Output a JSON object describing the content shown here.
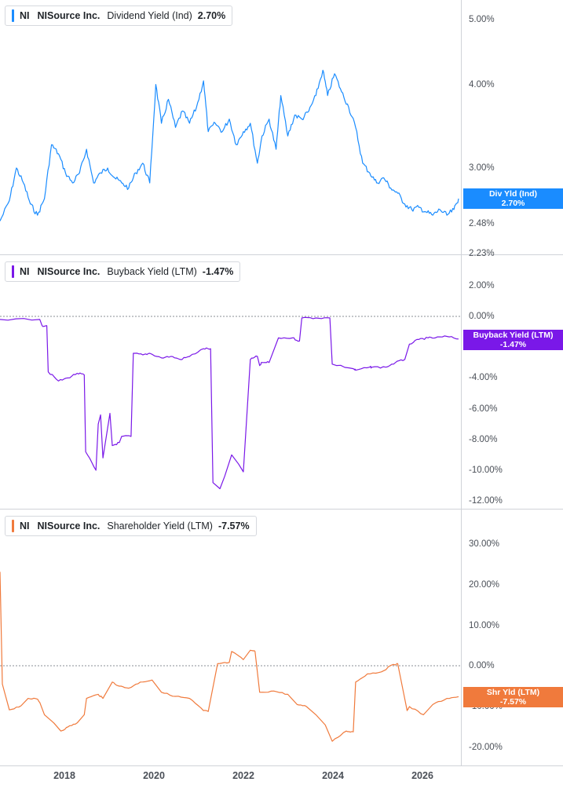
{
  "colors": {
    "dividend": "#1a8cff",
    "buyback": "#7a18e8",
    "shareholder": "#f07a3c",
    "grid": "#d0d3d8",
    "text": "#4a4f57"
  },
  "x_axis": {
    "ticks": [
      "2018",
      "2020",
      "2022",
      "2024",
      "2026"
    ]
  },
  "panes": [
    {
      "legend": {
        "ticker": "NI",
        "company": "NISource Inc.",
        "metric": "Dividend Yield (Ind)",
        "value": "2.70%"
      },
      "tag": {
        "label": "Div Yld (Ind)",
        "value": "2.70%"
      },
      "yticks": [
        "5.00%",
        "4.00%",
        "3.00%",
        "2.48%",
        "2.23%"
      ]
    },
    {
      "legend": {
        "ticker": "NI",
        "company": "NISource Inc.",
        "metric": "Buyback Yield (LTM)",
        "value": "-1.47%"
      },
      "tag": {
        "label": "Buyback Yield (LTM)",
        "value": "-1.47%"
      },
      "yticks": [
        "2.00%",
        "0.00%",
        "-2.00%",
        "-4.00%",
        "-6.00%",
        "-8.00%",
        "-10.00%",
        "-12.00%"
      ]
    },
    {
      "legend": {
        "ticker": "NI",
        "company": "NISource Inc.",
        "metric": "Shareholder Yield (LTM)",
        "value": "-7.57%"
      },
      "tag": {
        "label": "Shr Yld (LTM)",
        "value": "-7.57%"
      },
      "yticks": [
        "30.00%",
        "20.00%",
        "10.00%",
        "0.00%",
        "-10.00%",
        "-20.00%"
      ]
    }
  ],
  "chart_data": [
    {
      "type": "line",
      "scale": "log",
      "x_range": [
        2016.75,
        2026.6
      ],
      "ylim": [
        2.23,
        5.2
      ],
      "series": [
        {
          "name": "Dividend Yield (Ind)",
          "x": [
            2016.75,
            2016.95,
            2017.1,
            2017.25,
            2017.4,
            2017.55,
            2017.7,
            2017.85,
            2018.0,
            2018.15,
            2018.3,
            2018.45,
            2018.6,
            2018.75,
            2018.9,
            2019.05,
            2019.2,
            2019.35,
            2019.5,
            2019.65,
            2019.8,
            2019.95,
            2020.08,
            2020.2,
            2020.35,
            2020.5,
            2020.65,
            2020.8,
            2020.95,
            2021.1,
            2021.2,
            2021.35,
            2021.5,
            2021.65,
            2021.8,
            2021.95,
            2022.1,
            2022.25,
            2022.35,
            2022.5,
            2022.65,
            2022.75,
            2022.9,
            2023.05,
            2023.2,
            2023.35,
            2023.5,
            2023.65,
            2023.75,
            2023.9,
            2024.05,
            2024.2,
            2024.35,
            2024.5,
            2024.65,
            2024.8,
            2024.95,
            2025.1,
            2025.25,
            2025.4,
            2025.55,
            2025.7,
            2025.85,
            2026.0,
            2026.15,
            2026.3,
            2026.45,
            2026.55
          ],
          "values": [
            2.5,
            2.68,
            3.0,
            2.85,
            2.65,
            2.55,
            2.7,
            3.25,
            3.15,
            2.95,
            2.85,
            2.95,
            3.2,
            2.85,
            2.95,
            3.0,
            2.9,
            2.85,
            2.8,
            2.95,
            3.05,
            2.85,
            4.0,
            3.5,
            3.8,
            3.45,
            3.65,
            3.5,
            3.7,
            4.05,
            3.4,
            3.5,
            3.4,
            3.55,
            3.25,
            3.4,
            3.5,
            3.05,
            3.35,
            3.55,
            3.2,
            3.85,
            3.35,
            3.6,
            3.55,
            3.65,
            3.85,
            4.2,
            3.85,
            4.15,
            3.9,
            3.7,
            3.45,
            3.05,
            2.95,
            2.85,
            2.9,
            2.8,
            2.75,
            2.65,
            2.6,
            2.62,
            2.58,
            2.55,
            2.6,
            2.55,
            2.6,
            2.7
          ]
        }
      ]
    },
    {
      "type": "line",
      "x_range": [
        2016.75,
        2026.6
      ],
      "ylim": [
        -12.2,
        2.4
      ],
      "series": [
        {
          "name": "Buyback Yield (LTM)",
          "x": [
            2016.75,
            2017.6,
            2017.65,
            2017.75,
            2017.78,
            2018.0,
            2018.2,
            2018.4,
            2018.55,
            2018.58,
            2018.8,
            2018.85,
            2018.9,
            2018.95,
            2019.1,
            2019.15,
            2019.3,
            2019.35,
            2019.55,
            2019.6,
            2019.8,
            2019.95,
            2020.2,
            2020.4,
            2020.6,
            2020.8,
            2021.1,
            2021.25,
            2021.3,
            2021.45,
            2021.55,
            2021.7,
            2021.85,
            2021.95,
            2022.1,
            2022.25,
            2022.3,
            2022.35,
            2022.5,
            2022.7,
            2023.0,
            2023.15,
            2023.2,
            2023.5,
            2023.8,
            2023.85,
            2024.3,
            2024.35,
            2024.65,
            2024.7,
            2025.0,
            2025.2,
            2025.4,
            2025.5,
            2025.7,
            2025.9,
            2026.05,
            2026.3,
            2026.55
          ],
          "values": [
            -0.2,
            -0.2,
            -0.6,
            -0.6,
            -3.6,
            -4.2,
            -4.0,
            -3.7,
            -3.8,
            -8.8,
            -10.0,
            -7.0,
            -6.4,
            -9.2,
            -6.3,
            -8.4,
            -8.2,
            -7.8,
            -7.8,
            -2.4,
            -2.5,
            -2.4,
            -2.7,
            -2.6,
            -2.8,
            -2.6,
            -2.1,
            -2.1,
            -10.8,
            -11.2,
            -10.4,
            -9.0,
            -9.6,
            -10.1,
            -2.8,
            -2.6,
            -3.2,
            -3.0,
            -3.0,
            -1.4,
            -1.4,
            -1.6,
            -0.1,
            -0.1,
            -0.1,
            -3.1,
            -3.4,
            -3.5,
            -3.3,
            -3.3,
            -3.3,
            -3.0,
            -2.8,
            -1.8,
            -1.5,
            -1.4,
            -1.4,
            -1.3,
            -1.47
          ]
        }
      ]
    },
    {
      "type": "line",
      "x_range": [
        2016.75,
        2026.6
      ],
      "ylim": [
        -23.0,
        33.0
      ],
      "series": [
        {
          "name": "Shareholder Yield (LTM)",
          "x": [
            2016.75,
            2016.8,
            2016.95,
            2017.2,
            2017.35,
            2017.55,
            2017.6,
            2017.7,
            2017.9,
            2018.05,
            2018.2,
            2018.4,
            2018.55,
            2018.6,
            2018.85,
            2018.95,
            2019.15,
            2019.3,
            2019.5,
            2019.75,
            2020.0,
            2020.2,
            2020.5,
            2020.8,
            2021.1,
            2021.2,
            2021.4,
            2021.65,
            2021.7,
            2021.95,
            2022.1,
            2022.2,
            2022.3,
            2022.6,
            2022.9,
            2023.1,
            2023.3,
            2023.5,
            2023.7,
            2023.85,
            2024.15,
            2024.3,
            2024.35,
            2024.6,
            2024.9,
            2025.15,
            2025.25,
            2025.45,
            2025.5,
            2025.8,
            2026.0,
            2026.3,
            2026.55
          ],
          "values": [
            23.0,
            -4.5,
            -10.8,
            -9.8,
            -8.0,
            -8.2,
            -9.0,
            -12.0,
            -14.0,
            -16.0,
            -15.0,
            -14.0,
            -12.0,
            -8.0,
            -7.0,
            -8.0,
            -4.0,
            -5.0,
            -5.5,
            -4.0,
            -3.5,
            -6.5,
            -7.5,
            -8.0,
            -11.0,
            -11.2,
            0.5,
            0.8,
            3.5,
            1.5,
            3.8,
            3.5,
            -6.5,
            -6.2,
            -7.0,
            -9.5,
            -10.0,
            -12.0,
            -14.5,
            -18.5,
            -16.0,
            -16.2,
            -4.0,
            -2.0,
            -1.5,
            0.3,
            0.5,
            -11.0,
            -10.0,
            -12.0,
            -9.5,
            -8.0,
            -7.57
          ]
        }
      ]
    }
  ]
}
